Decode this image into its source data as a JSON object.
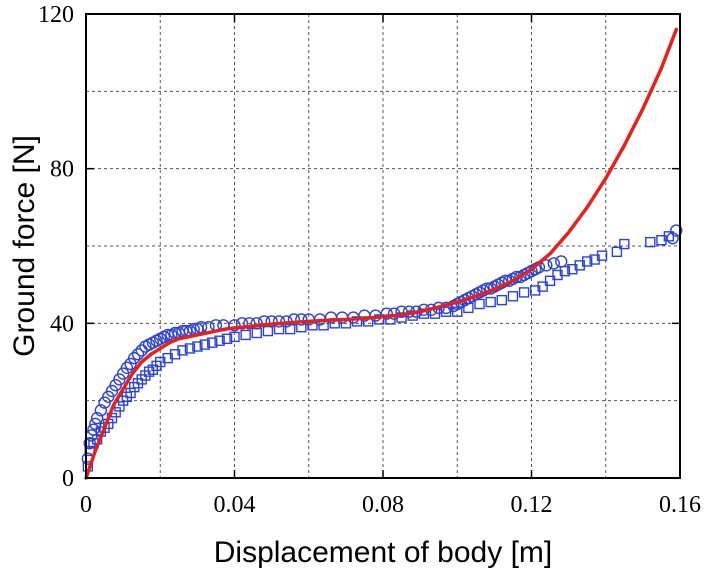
{
  "chart_data": {
    "type": "scatter",
    "xlabel": "Displacement of body [m]",
    "ylabel": "Ground force [N]",
    "xlim": [
      0,
      0.16
    ],
    "ylim": [
      0,
      120
    ],
    "x_ticks": [
      "0",
      "0.04",
      "0.08",
      "0.12",
      "0.16"
    ],
    "y_ticks": [
      "0",
      "40",
      "80",
      "120"
    ],
    "x_tick_values": [
      0,
      0.04,
      0.08,
      0.12,
      0.16
    ],
    "y_tick_values": [
      0,
      40,
      80,
      120
    ],
    "grid": true,
    "grid_x_values": [
      0.02,
      0.04,
      0.06,
      0.08,
      0.1,
      0.12,
      0.14
    ],
    "grid_y_values": [
      20,
      40,
      60,
      80,
      100
    ],
    "legend": "none",
    "colors": {
      "markers": "#2a43d6",
      "model_line": "#e8201a",
      "grid": "#555555",
      "frame": "#000000"
    },
    "series": [
      {
        "marker": "circle",
        "x": [
          0.0005,
          0.001,
          0.0015,
          0.002,
          0.0025,
          0.003,
          0.004,
          0.005,
          0.006,
          0.007,
          0.008,
          0.009,
          0.01,
          0.011,
          0.012,
          0.013,
          0.014,
          0.015,
          0.016,
          0.017,
          0.018,
          0.019,
          0.02,
          0.021,
          0.022,
          0.023,
          0.024,
          0.025,
          0.026,
          0.027,
          0.028,
          0.029,
          0.03,
          0.031,
          0.033,
          0.035,
          0.037,
          0.04,
          0.042,
          0.044,
          0.046,
          0.048,
          0.05,
          0.052,
          0.054,
          0.056,
          0.058,
          0.06,
          0.063,
          0.066,
          0.069,
          0.072,
          0.075,
          0.078,
          0.081,
          0.083,
          0.085,
          0.087,
          0.089,
          0.091,
          0.093,
          0.095,
          0.097,
          0.099,
          0.1,
          0.101,
          0.102,
          0.103,
          0.104,
          0.105,
          0.106,
          0.107,
          0.108,
          0.109,
          0.11,
          0.111,
          0.112,
          0.113,
          0.114,
          0.115,
          0.116,
          0.117,
          0.118,
          0.119,
          0.12,
          0.121,
          0.122,
          0.124,
          0.126,
          0.128,
          0.158,
          0.159
        ],
        "y": [
          5,
          9,
          11,
          12.5,
          14,
          15.5,
          17.5,
          19.5,
          21,
          22.5,
          24,
          25.5,
          27,
          28.5,
          29.5,
          31,
          32,
          33,
          34,
          34.5,
          35,
          35.5,
          36,
          36.5,
          37,
          37,
          37.5,
          37.5,
          38,
          38,
          38,
          38.5,
          38.5,
          39,
          39,
          39.5,
          39.5,
          39.5,
          40,
          40,
          40,
          40.5,
          40.5,
          40.5,
          40.5,
          41,
          41,
          41,
          41,
          41.5,
          41.5,
          41.5,
          42,
          42,
          42.5,
          42.5,
          43,
          43,
          43,
          43.5,
          43.5,
          44,
          44,
          44.5,
          45,
          45.5,
          46,
          46.5,
          47,
          47.5,
          48,
          48.5,
          49,
          49,
          49.5,
          50,
          50.5,
          51,
          51,
          51.5,
          52,
          52,
          52.5,
          53,
          53.5,
          54,
          54.5,
          55,
          55.5,
          56,
          62,
          64
        ]
      },
      {
        "marker": "square",
        "x": [
          0.0005,
          0.001,
          0.002,
          0.003,
          0.004,
          0.005,
          0.006,
          0.007,
          0.008,
          0.009,
          0.01,
          0.011,
          0.012,
          0.013,
          0.014,
          0.015,
          0.016,
          0.017,
          0.018,
          0.019,
          0.02,
          0.022,
          0.024,
          0.026,
          0.028,
          0.03,
          0.032,
          0.034,
          0.036,
          0.038,
          0.04,
          0.043,
          0.046,
          0.049,
          0.052,
          0.055,
          0.058,
          0.061,
          0.064,
          0.067,
          0.07,
          0.073,
          0.076,
          0.079,
          0.082,
          0.085,
          0.088,
          0.091,
          0.094,
          0.097,
          0.1,
          0.103,
          0.106,
          0.109,
          0.112,
          0.115,
          0.118,
          0.121,
          0.123,
          0.125,
          0.127,
          0.129,
          0.131,
          0.133,
          0.135,
          0.137,
          0.139,
          0.143,
          0.145,
          0.152,
          0.155,
          0.157
        ],
        "y": [
          3,
          7,
          9,
          10,
          12,
          13,
          14,
          15.5,
          17,
          18.5,
          20,
          21,
          22,
          23.5,
          24.5,
          25.5,
          26.5,
          27.5,
          28,
          29,
          30,
          31,
          32,
          33,
          33.5,
          34,
          34.5,
          35,
          35.5,
          36,
          36.5,
          37,
          37.5,
          38,
          38.5,
          38.5,
          39,
          39.5,
          39.5,
          40,
          40,
          40.5,
          40.5,
          41,
          41,
          41.5,
          42,
          42.5,
          42.5,
          43,
          43,
          44,
          45,
          45.5,
          46,
          47,
          48,
          48.5,
          49.5,
          51,
          52.5,
          53.5,
          54,
          55,
          56,
          56.5,
          57.5,
          58.5,
          60.5,
          61,
          61.5,
          62.5
        ]
      },
      {
        "marker": "line",
        "x": [
          0,
          0.0025,
          0.005,
          0.0075,
          0.01,
          0.0125,
          0.015,
          0.0175,
          0.02,
          0.0225,
          0.025,
          0.0275,
          0.03,
          0.0325,
          0.035,
          0.0375,
          0.04,
          0.045,
          0.05,
          0.055,
          0.06,
          0.065,
          0.07,
          0.075,
          0.08,
          0.085,
          0.09,
          0.095,
          0.1,
          0.105,
          0.11,
          0.115,
          0.12,
          0.125,
          0.13,
          0.135,
          0.14,
          0.145,
          0.15,
          0.155,
          0.159
        ],
        "y": [
          0,
          7,
          13,
          19,
          23,
          27,
          30,
          32,
          33.5,
          35,
          36,
          36.5,
          37,
          37.5,
          38,
          38.5,
          38.8,
          39.3,
          39.8,
          40.2,
          40.5,
          40.8,
          41,
          41.3,
          41.7,
          42.2,
          43,
          44.2,
          45.5,
          47,
          48.8,
          51,
          54,
          58,
          63.5,
          70,
          77.5,
          86,
          95.5,
          106,
          116
        ]
      }
    ]
  }
}
